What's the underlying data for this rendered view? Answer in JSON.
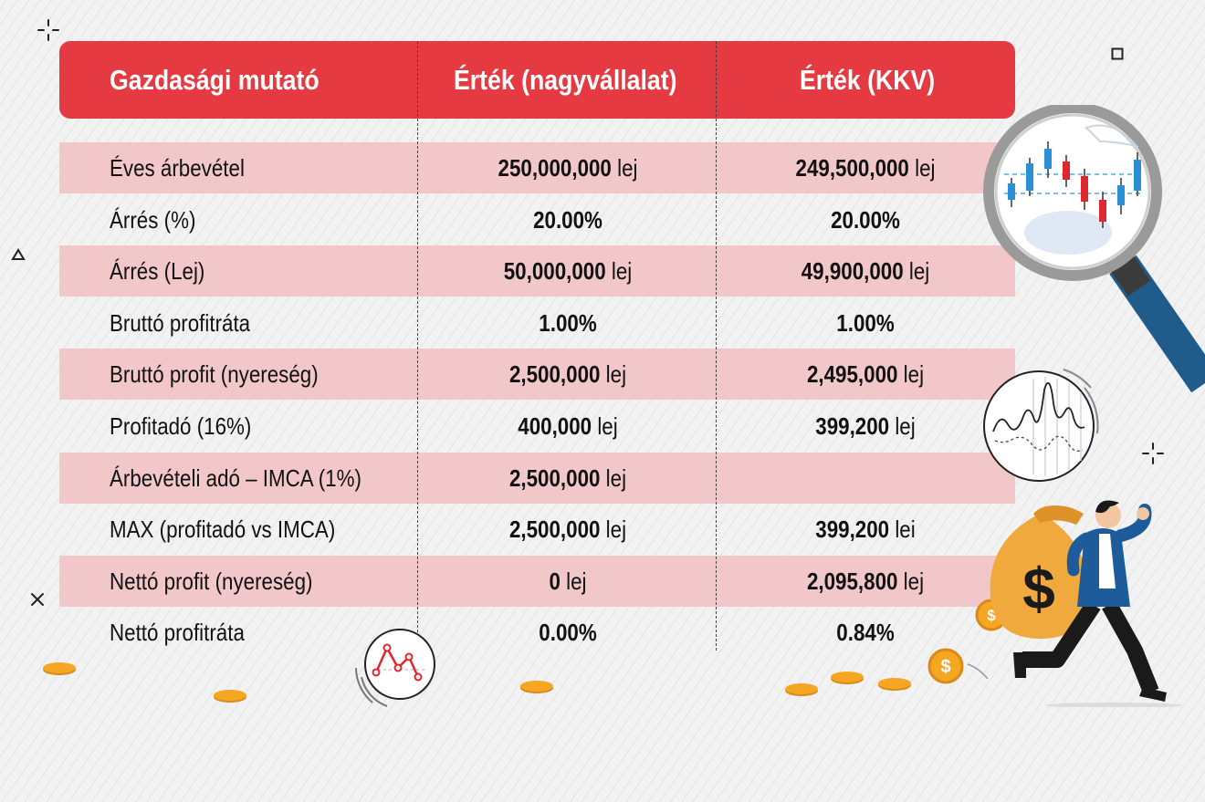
{
  "table": {
    "headers": [
      "Gazdasági mutató",
      "Érték (nagyvállalat)",
      "Érték (KKV)"
    ],
    "rows": [
      {
        "label": "Éves árbevétel",
        "v1": "250,000,000",
        "u1": "lej",
        "v2": "249,500,000",
        "u2": "lej"
      },
      {
        "label": "Árrés (%)",
        "v1": "20.00%",
        "u1": "",
        "v2": "20.00%",
        "u2": ""
      },
      {
        "label": "Árrés (Lej)",
        "v1": "50,000,000",
        "u1": "lej",
        "v2": "49,900,000",
        "u2": "lej"
      },
      {
        "label": "Bruttó profitráta",
        "v1": "1.00%",
        "u1": "",
        "v2": "1.00%",
        "u2": ""
      },
      {
        "label": "Bruttó profit (nyereség)",
        "v1": "2,500,000",
        "u1": "lej",
        "v2": "2,495,000",
        "u2": "lej"
      },
      {
        "label": "Profitadó (16%)",
        "v1": "400,000",
        "u1": "lej",
        "v2": "399,200",
        "u2": "lej"
      },
      {
        "label": "Árbevételi adó – IMCA (1%)",
        "v1": "2,500,000",
        "u1": "lej",
        "v2": "",
        "u2": ""
      },
      {
        "label": "MAX (profitadó vs IMCA)",
        "v1": "2,500,000",
        "u1": "lej",
        "v2": "399,200",
        "u2": "lei"
      },
      {
        "label": "Nettó profit (nyereség)",
        "v1": "0",
        "u1": "lej",
        "v2": "2,095,800",
        "u2": "lej"
      },
      {
        "label": "Nettó profitráta",
        "v1": "0.00%",
        "u1": "",
        "v2": "0.84%",
        "u2": ""
      }
    ]
  },
  "illustration": {
    "bag_symbol": "$",
    "coin_symbol": "$"
  },
  "colors": {
    "header_bg": "#e63a43",
    "row_shade": "#f2c7ca",
    "coin": "#f5a623",
    "magnifier_handle": "#1f5c8c",
    "jacket": "#1e5b9a"
  },
  "icons": [
    "magnifier-candlestick-icon",
    "line-chart-circle-icon",
    "mini-line-chart-icon",
    "money-bag-icon",
    "coin-icon",
    "running-man-icon",
    "sparkle-icon",
    "square-icon",
    "triangle-icon",
    "cross-icon"
  ]
}
